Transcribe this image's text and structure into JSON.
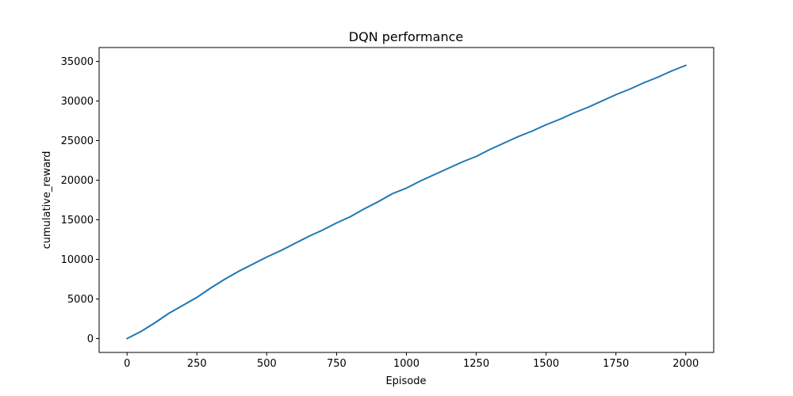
{
  "chart_data": {
    "type": "line",
    "title": "DQN performance",
    "xlabel": "Episode",
    "ylabel": "cumulative_reward",
    "xlim": [
      -100,
      2100
    ],
    "ylim": [
      -1750,
      36750
    ],
    "xticks": [
      0,
      250,
      500,
      750,
      1000,
      1250,
      1500,
      1750,
      2000
    ],
    "yticks": [
      0,
      5000,
      10000,
      15000,
      20000,
      25000,
      30000,
      35000
    ],
    "xtick_labels": [
      "0",
      "250",
      "500",
      "750",
      "1000",
      "1250",
      "1500",
      "1750",
      "2000"
    ],
    "ytick_labels": [
      "0",
      "5000",
      "10000",
      "15000",
      "20000",
      "25000",
      "30000",
      "35000"
    ],
    "grid": false,
    "series": [
      {
        "color": "#1f77b4",
        "x": [
          0,
          50,
          100,
          150,
          200,
          250,
          300,
          350,
          400,
          450,
          500,
          550,
          600,
          650,
          700,
          750,
          800,
          850,
          900,
          950,
          1000,
          1050,
          1100,
          1150,
          1200,
          1250,
          1300,
          1350,
          1400,
          1450,
          1500,
          1550,
          1600,
          1650,
          1700,
          1750,
          1800,
          1850,
          1900,
          1950,
          2000
        ],
        "y": [
          0,
          900,
          2000,
          3200,
          4200,
          5200,
          6400,
          7500,
          8500,
          9400,
          10300,
          11100,
          12000,
          12900,
          13700,
          14600,
          15400,
          16400,
          17300,
          18300,
          19000,
          19900,
          20700,
          21500,
          22300,
          23000,
          23900,
          24700,
          25500,
          26200,
          27000,
          27700,
          28500,
          29200,
          30000,
          30800,
          31500,
          32300,
          33000,
          33800,
          34500
        ]
      }
    ]
  }
}
